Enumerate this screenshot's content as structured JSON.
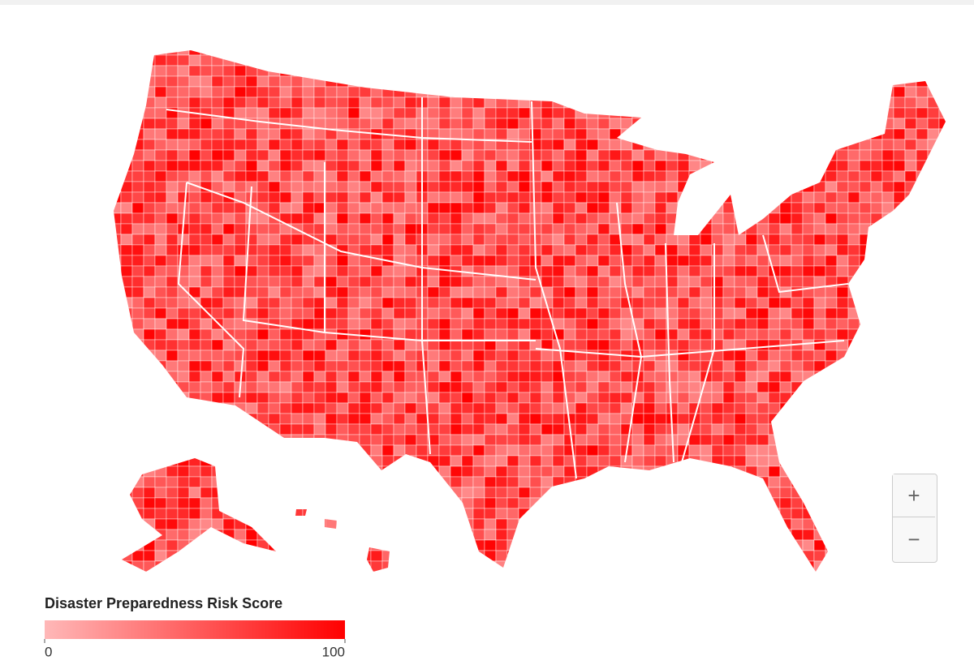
{
  "legend": {
    "title": "Disaster Preparedness Risk Score",
    "min": 0,
    "max": 100,
    "colors": [
      "#ffb8b8",
      "#ff0000"
    ]
  },
  "zoom_controls": {
    "zoom_in": "+",
    "zoom_out": "−"
  }
}
